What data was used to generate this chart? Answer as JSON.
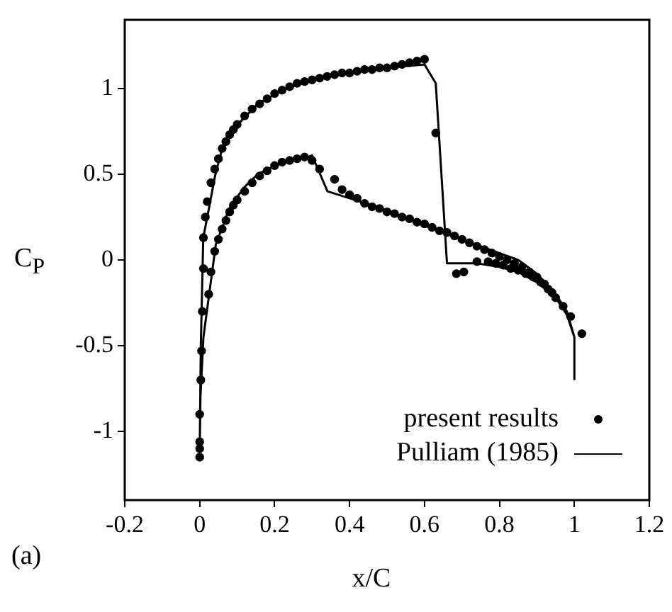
{
  "chart_data": {
    "type": "scatter",
    "xlabel": "x/C",
    "ylabel": "C$_{P}$",
    "annotations": [
      "(a)"
    ],
    "xlim": [
      -0.2,
      1.2
    ],
    "xticks": [
      -0.2,
      0,
      0.2,
      0.4,
      0.6,
      0.8,
      1,
      1.2
    ],
    "ylim": [
      -1.4,
      1.4
    ],
    "yticks": [
      -1,
      -0.5,
      0,
      0.5,
      1
    ],
    "grid": false,
    "legend": "bottom right",
    "series": [
      {
        "name": "present results",
        "type": "scatter",
        "marker": "circle",
        "color": "#000000",
        "x": [
          0,
          0,
          0,
          0,
          0.003,
          0.005,
          0.007,
          0.01,
          0.01,
          0.015,
          0.02,
          0.03,
          0.04,
          0.05,
          0.06,
          0.07,
          0.08,
          0.09,
          0.1,
          0.12,
          0.14,
          0.16,
          0.18,
          0.2,
          0.22,
          0.24,
          0.26,
          0.28,
          0.3,
          0.32,
          0.34,
          0.36,
          0.38,
          0.4,
          0.42,
          0.44,
          0.46,
          0.48,
          0.5,
          0.52,
          0.54,
          0.56,
          0.58,
          0.6,
          0.63,
          0.685,
          0.705,
          0.74,
          0.77,
          0.79,
          0.81,
          0.83,
          0.85,
          0.87,
          0.89,
          0.91,
          0.93,
          0.95,
          0.97,
          0.99,
          1.02,
          0.024,
          0.03,
          0.04,
          0.05,
          0.06,
          0.07,
          0.08,
          0.09,
          0.1,
          0.12,
          0.14,
          0.16,
          0.18,
          0.2,
          0.22,
          0.24,
          0.26,
          0.28,
          0.3,
          0.32,
          0.36,
          0.38,
          0.4,
          0.42,
          0.44,
          0.46,
          0.48,
          0.5,
          0.52,
          0.54,
          0.56,
          0.58,
          0.6,
          0.62,
          0.64,
          0.66,
          0.68,
          0.7,
          0.72,
          0.74,
          0.76,
          0.78,
          0.8,
          0.82,
          0.84,
          0.86,
          0.88,
          0.9,
          0.92,
          0.94
        ],
        "values": [
          -1.15,
          -1.1,
          -1.06,
          -0.9,
          -0.7,
          -0.53,
          -0.3,
          -0.05,
          0.13,
          0.25,
          0.34,
          0.45,
          0.53,
          0.59,
          0.65,
          0.69,
          0.73,
          0.76,
          0.79,
          0.84,
          0.88,
          0.91,
          0.94,
          0.97,
          0.99,
          1.01,
          1.03,
          1.04,
          1.05,
          1.06,
          1.07,
          1.08,
          1.09,
          1.09,
          1.1,
          1.11,
          1.11,
          1.12,
          1.12,
          1.13,
          1.14,
          1.15,
          1.16,
          1.17,
          0.74,
          -0.08,
          -0.07,
          -0.01,
          -0.01,
          -0.02,
          -0.03,
          -0.05,
          -0.06,
          -0.08,
          -0.1,
          -0.13,
          -0.17,
          -0.22,
          -0.27,
          -0.33,
          -0.43,
          -0.2,
          -0.07,
          0.05,
          0.12,
          0.18,
          0.23,
          0.28,
          0.32,
          0.35,
          0.4,
          0.45,
          0.49,
          0.52,
          0.55,
          0.57,
          0.58,
          0.59,
          0.6,
          0.58,
          0.53,
          0.47,
          0.41,
          0.38,
          0.36,
          0.33,
          0.31,
          0.3,
          0.28,
          0.27,
          0.25,
          0.24,
          0.22,
          0.21,
          0.19,
          0.17,
          0.16,
          0.14,
          0.12,
          0.1,
          0.08,
          0.06,
          0.04,
          0.02,
          0,
          -0.02,
          -0.04,
          -0.07,
          -0.1,
          -0.14,
          -0.19
        ]
      },
      {
        "name": "Pulliam (1985)",
        "type": "line",
        "marker": "none",
        "line_style": "solid",
        "color": "#000000",
        "x": [
          1,
          1,
          0.98,
          0.95,
          0.9,
          0.85,
          0.8,
          0.74,
          0.66,
          0.63,
          0.6,
          0.5,
          0.4,
          0.347,
          0.3,
          0.22,
          0.155,
          0.097,
          0.06,
          0.041,
          0.022,
          0.0095,
          0.003,
          0,
          0.002,
          0.01,
          0.024,
          0.043,
          0.079,
          0.117,
          0.155,
          0.22,
          0.29,
          0.3,
          0.341,
          0.4,
          0.5,
          0.6,
          0.65,
          0.7,
          0.8,
          0.85,
          0.9,
          0.95,
          0.98,
          1
        ],
        "values": [
          -0.7,
          -0.45,
          -0.32,
          -0.22,
          -0.13,
          -0.07,
          -0.04,
          -0.02,
          -0.02,
          1.03,
          1.14,
          1.12,
          1.09,
          1.08,
          1.05,
          0.99,
          0.91,
          0.78,
          0.65,
          0.49,
          0.27,
          0.13,
          -0.5,
          -1.12,
          -0.8,
          -0.45,
          -0.22,
          0.09,
          0.3,
          0.42,
          0.5,
          0.57,
          0.6,
          0.61,
          0.4,
          0.36,
          0.29,
          0.2,
          0.16,
          0.12,
          0.04,
          0,
          -0.08,
          -0.2,
          -0.3,
          -0.45
        ]
      }
    ]
  }
}
